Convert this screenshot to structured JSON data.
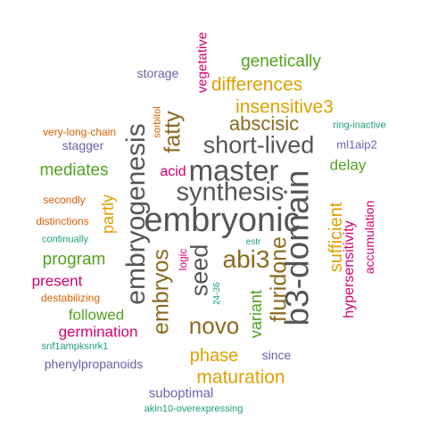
{
  "colors": {
    "gray": "#555555",
    "olive": "#8a6a1f",
    "magenta": "#d4006e",
    "green": "#52a11f",
    "orange": "#e0a000",
    "purple": "#6b5ea8",
    "rust": "#d95f02",
    "teal": "#1b9e77"
  },
  "words": [
    {
      "text": "embryonic",
      "color": "gray"
    },
    {
      "text": "master",
      "color": "gray"
    },
    {
      "text": "short-lived",
      "color": "gray"
    },
    {
      "text": "synthesis",
      "color": "gray"
    },
    {
      "text": "b3-domain",
      "color": "gray"
    },
    {
      "text": "embryogenesis",
      "color": "gray"
    },
    {
      "text": "seed",
      "color": "gray"
    },
    {
      "text": "abi3",
      "color": "olive"
    },
    {
      "text": "abscisic",
      "color": "olive"
    },
    {
      "text": "fluridone",
      "color": "olive"
    },
    {
      "text": "embryos",
      "color": "olive"
    },
    {
      "text": "novo",
      "color": "olive"
    },
    {
      "text": "fatty",
      "color": "olive"
    },
    {
      "text": "differences",
      "color": "orange"
    },
    {
      "text": "insensitive3",
      "color": "orange"
    },
    {
      "text": "maturation",
      "color": "orange"
    },
    {
      "text": "phase",
      "color": "orange"
    },
    {
      "text": "sufficient",
      "color": "orange"
    },
    {
      "text": "partly",
      "color": "orange"
    },
    {
      "text": "genetically",
      "color": "green"
    },
    {
      "text": "mediates",
      "color": "green"
    },
    {
      "text": "program",
      "color": "green"
    },
    {
      "text": "followed",
      "color": "green"
    },
    {
      "text": "delay",
      "color": "green"
    },
    {
      "text": "variant",
      "color": "green"
    },
    {
      "text": "germination",
      "color": "magenta"
    },
    {
      "text": "present",
      "color": "magenta"
    },
    {
      "text": "acid",
      "color": "magenta"
    },
    {
      "text": "vegetative",
      "color": "magenta"
    },
    {
      "text": "hypersensitivity",
      "color": "magenta"
    },
    {
      "text": "accumulation",
      "color": "magenta"
    },
    {
      "text": "logic",
      "color": "magenta"
    },
    {
      "text": "storage",
      "color": "purple"
    },
    {
      "text": "stagger",
      "color": "purple"
    },
    {
      "text": "ml1aip2",
      "color": "purple"
    },
    {
      "text": "phenylpropanoids",
      "color": "purple"
    },
    {
      "text": "suboptimal",
      "color": "purple"
    },
    {
      "text": "since",
      "color": "purple"
    },
    {
      "text": "very-long-chain",
      "color": "rust"
    },
    {
      "text": "secondly",
      "color": "rust"
    },
    {
      "text": "distinctions",
      "color": "rust"
    },
    {
      "text": "destabilizing",
      "color": "rust"
    },
    {
      "text": "sorbitol",
      "color": "rust"
    },
    {
      "text": "ring-inactive",
      "color": "teal"
    },
    {
      "text": "continually",
      "color": "teal"
    },
    {
      "text": "snf1ampksnrk1",
      "color": "teal"
    },
    {
      "text": "akin10-overexpressing",
      "color": "teal"
    },
    {
      "text": "24-36",
      "color": "teal"
    },
    {
      "text": "estr",
      "color": "teal"
    }
  ]
}
